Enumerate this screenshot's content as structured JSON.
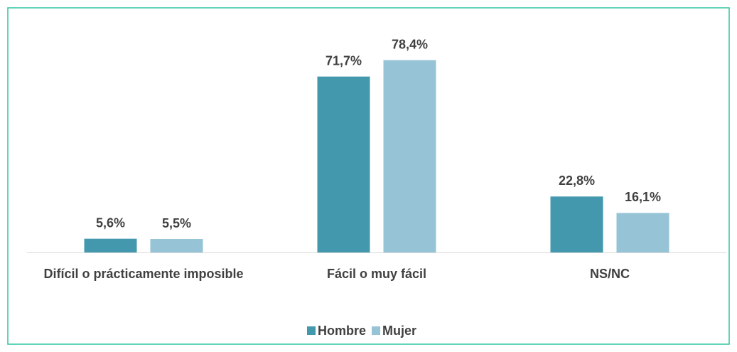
{
  "chart_data": {
    "type": "bar",
    "categories": [
      "Difícil o prácticamente imposible",
      "Fácil o muy fácil",
      "NS/NC"
    ],
    "series": [
      {
        "name": "Hombre",
        "color": "#4398ae",
        "values": [
          5.6,
          71.7,
          22.8
        ],
        "value_labels": [
          "5,6%",
          "71,7%",
          "22,8%"
        ]
      },
      {
        "name": "Mujer",
        "color": "#96c4d6",
        "values": [
          5.5,
          78.4,
          16.1
        ],
        "value_labels": [
          "5,5%",
          "78,4%",
          "16,1%"
        ]
      }
    ],
    "ylim": [
      0,
      80
    ],
    "legend": "bottom"
  }
}
